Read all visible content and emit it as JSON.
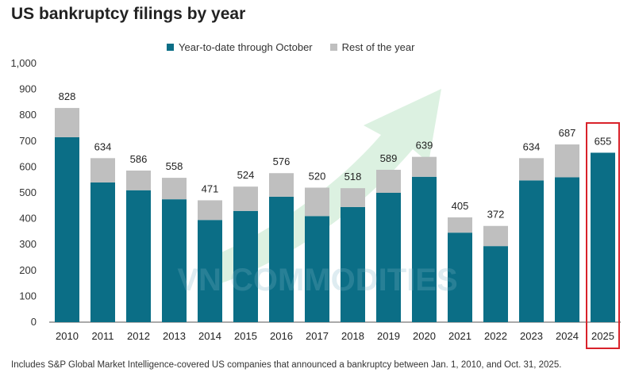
{
  "title": "US bankruptcy filings by year",
  "legend": {
    "ytd_label": "Year-to-date through October",
    "rest_label": "Rest of the year"
  },
  "colors": {
    "ytd": "#0b6e86",
    "rest": "#bfbfbf",
    "highlight": "#d9222a",
    "watermark_arrow": "#bfe6c8"
  },
  "watermark_text": "VN COMMODITIES",
  "footnote": "Includes S&P Global Market Intelligence-covered US companies that announced a bankruptcy between Jan. 1, 2010, and Oct. 31, 2025.",
  "chart_data": {
    "type": "bar",
    "stacked": true,
    "categories": [
      "2010",
      "2011",
      "2012",
      "2013",
      "2014",
      "2015",
      "2016",
      "2017",
      "2018",
      "2019",
      "2020",
      "2021",
      "2022",
      "2023",
      "2024",
      "2025"
    ],
    "series": [
      {
        "name": "Year-to-date through October",
        "values": [
          715,
          540,
          510,
          475,
          395,
          430,
          485,
          410,
          445,
          500,
          562,
          346,
          294,
          548,
          560,
          655
        ]
      },
      {
        "name": "Rest of the year",
        "values": [
          113,
          94,
          76,
          83,
          76,
          94,
          91,
          110,
          73,
          89,
          77,
          59,
          78,
          86,
          127,
          0
        ]
      }
    ],
    "totals": [
      828,
      634,
      586,
      558,
      471,
      524,
      576,
      520,
      518,
      589,
      639,
      405,
      372,
      634,
      687,
      655
    ],
    "total_labels": [
      "828",
      "634",
      "586",
      "558",
      "471",
      "524",
      "576",
      "520",
      "518",
      "589",
      "639",
      "405",
      "372",
      "634",
      "687",
      "655"
    ],
    "yticks": [
      "0",
      "100",
      "200",
      "300",
      "400",
      "500",
      "600",
      "700",
      "800",
      "900",
      "1,000"
    ],
    "ylim": [
      0,
      1000
    ],
    "highlighted_category": "2025",
    "grid": false,
    "legend_position": "top"
  }
}
